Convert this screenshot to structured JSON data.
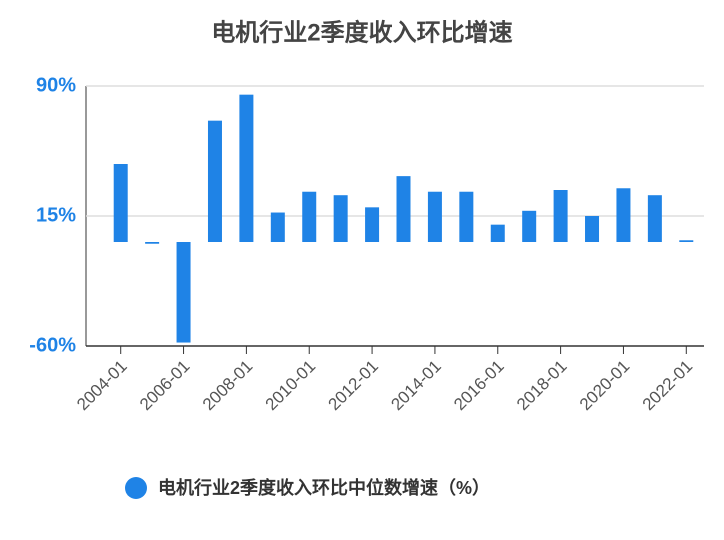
{
  "chart_data": {
    "type": "bar",
    "title": "电机行业2季度收入环比增速",
    "categories": [
      "2004-01",
      null,
      "2006-01",
      null,
      "2008-01",
      null,
      "2010-01",
      null,
      "2012-01",
      null,
      "2014-01",
      null,
      "2016-01",
      null,
      "2018-01",
      null,
      "2020-01",
      null,
      "2022-01"
    ],
    "series": [
      {
        "name": "电机行业2季度收入环比中位数增速（%）",
        "color": "#1f83e6",
        "values": [
          45,
          -1,
          -58,
          70,
          85,
          17,
          29,
          27,
          20,
          38,
          29,
          29,
          10,
          18,
          30,
          15,
          31,
          27,
          1
        ]
      }
    ],
    "ylim": [
      -60,
      90
    ],
    "yticks": [
      {
        "value": -60,
        "label": "-60%"
      },
      {
        "value": 15,
        "label": "15%"
      },
      {
        "value": 90,
        "label": "90%"
      }
    ],
    "grid": true
  }
}
